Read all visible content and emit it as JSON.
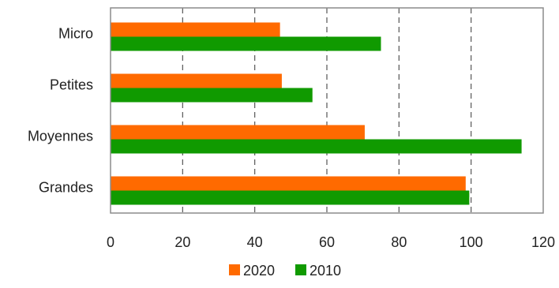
{
  "chart_data": {
    "type": "bar",
    "orientation": "horizontal",
    "categories": [
      "Micro",
      "Petites",
      "Moyennes",
      "Grandes"
    ],
    "series": [
      {
        "name": "2020",
        "color": "#FF6A00",
        "values": [
          47,
          47.5,
          70.5,
          98.5
        ]
      },
      {
        "name": "2010",
        "color": "#109A00",
        "values": [
          75,
          56,
          114,
          99.5
        ]
      }
    ],
    "xlim": [
      0,
      120
    ],
    "x_ticks": [
      "0",
      "20",
      "40",
      "60",
      "80",
      "100",
      "120"
    ],
    "grid": "vertical-dashed",
    "legend_position": "bottom-center",
    "title": "",
    "xlabel": "",
    "ylabel": ""
  }
}
